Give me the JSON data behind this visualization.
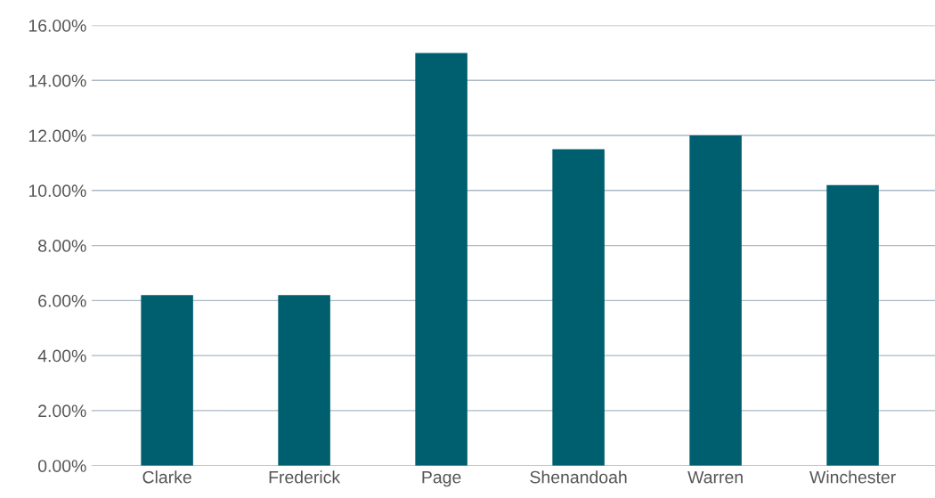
{
  "chart_data": {
    "type": "bar",
    "categories": [
      "Clarke",
      "Frederick",
      "Page",
      "Shenandoah",
      "Warren",
      "Winchester"
    ],
    "values": [
      6.2,
      6.2,
      15.0,
      11.5,
      12.0,
      10.2
    ],
    "color": "#005f6f",
    "ylim": [
      0,
      16
    ],
    "yticks": [
      {
        "value": 0,
        "label": "0.00%"
      },
      {
        "value": 2,
        "label": "2.00%"
      },
      {
        "value": 4,
        "label": "4.00%"
      },
      {
        "value": 6,
        "label": "6.00%"
      },
      {
        "value": 8,
        "label": "8.00%"
      },
      {
        "value": 10,
        "label": "10.00%"
      },
      {
        "value": 12,
        "label": "12.00%"
      },
      {
        "value": 14,
        "label": "14.00%"
      },
      {
        "value": 16,
        "label": "16.00%"
      }
    ],
    "grid": "y",
    "legend": false
  }
}
